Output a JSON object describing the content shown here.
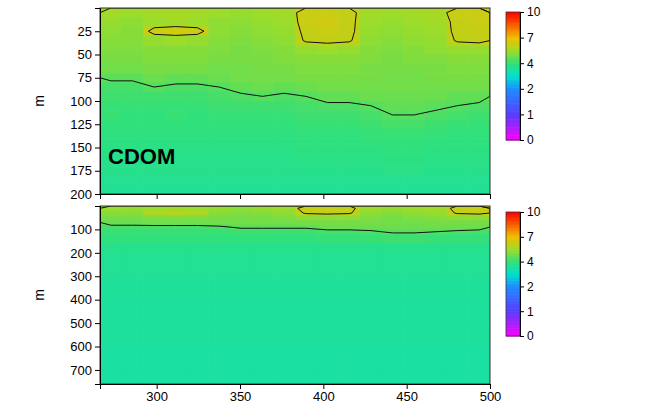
{
  "chart_data": [
    {
      "type": "heatmap",
      "annotation": "CDOM",
      "y_label": "m",
      "xlim": [
        266,
        500
      ],
      "xticks": [
        300,
        350,
        400,
        450,
        500
      ],
      "ylim": [
        200,
        0
      ],
      "yticks": [
        25,
        50,
        75,
        100,
        125,
        150,
        175,
        200
      ],
      "tick_labels": "y",
      "x_edges": [
        266,
        279,
        292,
        305,
        318,
        331,
        344,
        357,
        370,
        383,
        396,
        409,
        422,
        435,
        448,
        461,
        474,
        487,
        500
      ],
      "y_edges": [
        0,
        10,
        20,
        30,
        40,
        50,
        60,
        70,
        80,
        90,
        100,
        110,
        120,
        130,
        140,
        150,
        160,
        170,
        180,
        190,
        200
      ],
      "cells": [
        [
          5.6,
          5.5,
          5.6,
          5.7,
          5.6,
          5.5,
          5.4,
          5.5,
          5.6,
          6.3,
          6.3,
          6.2,
          5.6,
          5.5,
          5.6,
          5.7,
          6.3,
          6.3
        ],
        [
          5.4,
          5.3,
          5.5,
          5.6,
          5.5,
          5.3,
          5.3,
          5.4,
          5.5,
          6.3,
          6.4,
          6.2,
          5.5,
          5.4,
          5.5,
          5.6,
          6.2,
          6.3
        ],
        [
          5.3,
          5.2,
          6.3,
          6.4,
          6.3,
          5.3,
          5.2,
          5.3,
          5.4,
          6.2,
          6.3,
          6.2,
          5.4,
          5.3,
          5.4,
          5.5,
          6.2,
          6.2
        ],
        [
          5.2,
          5.2,
          5.4,
          5.5,
          5.4,
          5.2,
          5.1,
          5.2,
          5.3,
          6.1,
          6.2,
          6.1,
          5.3,
          5.2,
          5.3,
          5.4,
          6.1,
          6.2
        ],
        [
          5.1,
          5.1,
          5.2,
          5.2,
          5.2,
          5.1,
          5.0,
          5.1,
          5.2,
          5.4,
          5.5,
          5.4,
          5.2,
          5.1,
          5.2,
          5.3,
          5.4,
          5.4
        ],
        [
          5.0,
          5.0,
          5.1,
          5.1,
          5.1,
          5.0,
          5.0,
          5.0,
          5.1,
          5.2,
          5.2,
          5.2,
          5.1,
          5.0,
          5.1,
          5.1,
          5.2,
          5.2
        ],
        [
          4.9,
          4.9,
          5.0,
          5.0,
          5.0,
          4.9,
          4.9,
          5.0,
          5.0,
          5.1,
          5.1,
          5.1,
          5.0,
          5.0,
          5.0,
          5.0,
          5.1,
          5.1
        ],
        [
          4.6,
          4.6,
          4.8,
          4.7,
          4.7,
          4.8,
          4.9,
          4.9,
          4.9,
          5.0,
          5.0,
          5.0,
          5.0,
          4.9,
          4.9,
          5.0,
          5.0,
          5.0
        ],
        [
          4.3,
          4.3,
          4.5,
          4.4,
          4.4,
          4.5,
          4.7,
          4.8,
          4.7,
          4.8,
          4.9,
          4.9,
          4.9,
          4.9,
          4.9,
          4.9,
          4.9,
          4.9
        ],
        [
          4.2,
          4.2,
          4.2,
          4.2,
          4.2,
          4.3,
          4.4,
          4.5,
          4.4,
          4.5,
          4.7,
          4.7,
          4.8,
          4.8,
          4.8,
          4.8,
          4.7,
          4.7
        ],
        [
          4.1,
          4.1,
          4.1,
          4.1,
          4.1,
          4.2,
          4.2,
          4.2,
          4.2,
          4.3,
          4.4,
          4.4,
          4.5,
          4.7,
          4.7,
          4.6,
          4.5,
          4.4
        ],
        [
          4.1,
          4.0,
          4.0,
          4.1,
          4.0,
          4.1,
          4.1,
          4.1,
          4.1,
          4.2,
          4.2,
          4.2,
          4.3,
          4.5,
          4.5,
          4.4,
          4.3,
          4.2
        ],
        [
          4.0,
          4.0,
          4.0,
          4.0,
          4.0,
          4.0,
          4.0,
          4.0,
          4.0,
          4.1,
          4.1,
          4.1,
          4.2,
          4.3,
          4.3,
          4.2,
          4.1,
          4.1
        ],
        [
          3.95,
          3.95,
          3.95,
          3.95,
          3.95,
          3.95,
          3.95,
          3.95,
          3.95,
          4.0,
          4.0,
          4.0,
          4.05,
          4.1,
          4.1,
          4.05,
          4.0,
          4.0
        ],
        [
          3.9,
          3.9,
          3.9,
          3.9,
          3.9,
          3.9,
          3.9,
          3.9,
          3.9,
          3.95,
          3.95,
          3.95,
          4.0,
          4.0,
          4.0,
          3.95,
          3.95,
          3.95
        ],
        [
          3.85,
          3.85,
          3.85,
          3.85,
          3.85,
          3.85,
          3.85,
          3.85,
          3.85,
          3.9,
          3.9,
          3.9,
          3.9,
          3.95,
          3.95,
          3.9,
          3.9,
          3.9
        ],
        [
          3.8,
          3.8,
          3.8,
          3.8,
          3.8,
          3.8,
          3.8,
          3.8,
          3.8,
          3.85,
          3.85,
          3.85,
          3.85,
          3.9,
          3.9,
          3.85,
          3.85,
          3.85
        ],
        [
          3.8,
          3.8,
          3.8,
          3.8,
          3.8,
          3.8,
          3.8,
          3.8,
          3.8,
          3.8,
          3.8,
          3.8,
          3.8,
          3.85,
          3.85,
          3.8,
          3.8,
          3.8
        ],
        [
          3.75,
          3.75,
          3.75,
          3.75,
          3.75,
          3.75,
          3.75,
          3.75,
          3.75,
          3.75,
          3.75,
          3.75,
          3.75,
          3.75,
          3.75,
          3.75,
          3.75,
          3.75
        ],
        [
          3.7,
          3.7,
          3.7,
          3.7,
          3.7,
          3.7,
          3.7,
          3.7,
          3.7,
          3.7,
          3.7,
          3.7,
          3.7,
          3.7,
          3.7,
          3.7,
          3.7,
          3.7
        ]
      ],
      "contour_levels": [
        4.5,
        6
      ],
      "colorbar_range": [
        0,
        10
      ],
      "colorbar_ticks": [
        0,
        1,
        2,
        4,
        7,
        10
      ]
    },
    {
      "type": "heatmap",
      "y_label": "m",
      "xlim": [
        266,
        500
      ],
      "xticks": [
        300,
        350,
        400,
        450,
        500
      ],
      "ylim": [
        760,
        0
      ],
      "yticks": [
        100,
        200,
        300,
        400,
        500,
        600,
        700
      ],
      "x_edges": [
        266,
        279,
        292,
        305,
        318,
        331,
        344,
        357,
        370,
        383,
        396,
        409,
        422,
        435,
        448,
        461,
        474,
        487,
        500
      ],
      "y_edges": [
        0,
        20,
        40,
        60,
        80,
        100,
        120,
        160,
        200,
        300,
        400,
        500,
        600,
        700,
        760
      ],
      "cells": [
        [
          5.5,
          5.4,
          5.5,
          5.6,
          5.5,
          5.4,
          5.3,
          5.4,
          5.5,
          6.3,
          6.3,
          6.2,
          5.5,
          5.4,
          5.5,
          5.6,
          6.2,
          6.3
        ],
        [
          5.2,
          5.2,
          5.8,
          5.9,
          5.8,
          5.2,
          5.1,
          5.2,
          5.3,
          6.1,
          6.2,
          6.1,
          5.3,
          5.2,
          5.3,
          5.4,
          6.1,
          6.2
        ],
        [
          5.0,
          5.0,
          5.1,
          5.1,
          5.1,
          5.0,
          5.0,
          5.0,
          5.1,
          5.3,
          5.3,
          5.3,
          5.1,
          5.0,
          5.1,
          5.2,
          5.3,
          5.3
        ],
        [
          4.8,
          4.8,
          4.9,
          4.9,
          4.9,
          4.9,
          4.9,
          4.9,
          4.9,
          5.0,
          5.0,
          5.0,
          5.0,
          4.9,
          4.9,
          5.0,
          5.0,
          5.0
        ],
        [
          4.3,
          4.3,
          4.3,
          4.3,
          4.3,
          4.4,
          4.6,
          4.6,
          4.6,
          4.6,
          4.8,
          4.8,
          4.8,
          4.8,
          4.8,
          4.8,
          4.8,
          4.8
        ],
        [
          4.1,
          4.1,
          4.1,
          4.1,
          4.1,
          4.1,
          4.2,
          4.2,
          4.2,
          4.2,
          4.3,
          4.3,
          4.4,
          4.6,
          4.6,
          4.5,
          4.4,
          4.3
        ],
        [
          4.0,
          4.0,
          4.0,
          4.0,
          4.0,
          4.0,
          4.0,
          4.0,
          4.0,
          4.0,
          4.05,
          4.05,
          4.1,
          4.2,
          4.2,
          4.1,
          4.05,
          4.05
        ],
        [
          3.8,
          3.8,
          3.8,
          3.8,
          3.8,
          3.8,
          3.8,
          3.8,
          3.8,
          3.8,
          3.8,
          3.8,
          3.8,
          3.8,
          3.8,
          3.8,
          3.8,
          3.8
        ],
        [
          3.7,
          3.7,
          3.7,
          3.7,
          3.7,
          3.7,
          3.7,
          3.7,
          3.7,
          3.7,
          3.7,
          3.7,
          3.7,
          3.7,
          3.7,
          3.7,
          3.7,
          3.7
        ],
        [
          3.65,
          3.65,
          3.65,
          3.65,
          3.65,
          3.65,
          3.65,
          3.65,
          3.65,
          3.65,
          3.65,
          3.65,
          3.65,
          3.65,
          3.65,
          3.65,
          3.65,
          3.65
        ],
        [
          3.6,
          3.6,
          3.6,
          3.6,
          3.6,
          3.6,
          3.6,
          3.6,
          3.6,
          3.6,
          3.6,
          3.6,
          3.6,
          3.6,
          3.6,
          3.6,
          3.6,
          3.6
        ],
        [
          3.6,
          3.6,
          3.6,
          3.6,
          3.6,
          3.6,
          3.6,
          3.6,
          3.6,
          3.6,
          3.6,
          3.6,
          3.6,
          3.6,
          3.6,
          3.6,
          3.6,
          3.6
        ],
        [
          3.55,
          3.55,
          3.55,
          3.55,
          3.55,
          3.55,
          3.55,
          3.55,
          3.55,
          3.55,
          3.55,
          3.55,
          3.55,
          3.55,
          3.55,
          3.55,
          3.55,
          3.55
        ],
        [
          3.55,
          3.55,
          3.55,
          3.55,
          3.55,
          3.55,
          3.55,
          3.55,
          3.55,
          3.55,
          3.55,
          3.55,
          3.55,
          3.55,
          3.55,
          3.55,
          3.55,
          3.55
        ]
      ],
      "contour_levels": [
        4.5,
        6
      ],
      "colorbar_range": [
        0,
        10
      ],
      "colorbar_ticks": [
        0,
        1,
        2,
        4,
        7,
        10
      ]
    }
  ]
}
